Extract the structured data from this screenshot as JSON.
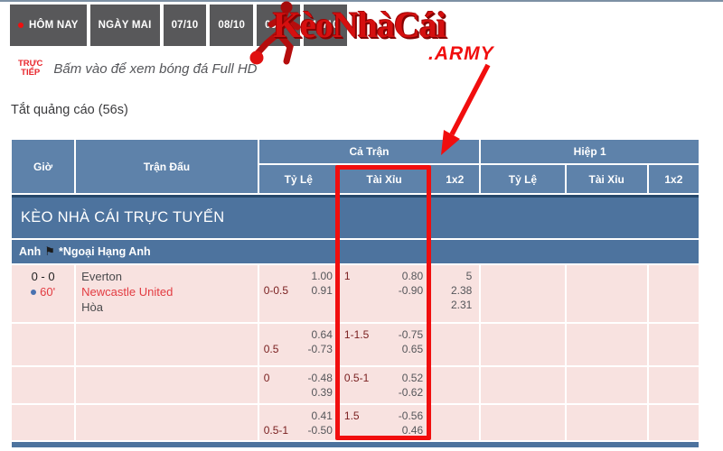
{
  "colors": {
    "accent_red": "#f10e0e",
    "logo_red": "#d50f0f",
    "live_red": "#e8262c",
    "header_blue": "#5e82aa",
    "band_blue": "#4d739e",
    "row_pink": "#f8e2e0",
    "tab_gray": "#58585a",
    "maroon": "#7a2020",
    "odds_gray": "#55565a",
    "team_red": "#e23b41",
    "dot_blue": "#4a72b0",
    "topline": "#7d90a4"
  },
  "topbar": {
    "tabs": [
      {
        "label": "HÔM NAY",
        "live_dot": true
      },
      {
        "label": "NGÀY MAI",
        "live_dot": false
      },
      {
        "label": "07/10",
        "live_dot": false
      },
      {
        "label": "08/10",
        "live_dot": false
      },
      {
        "label": "09/10",
        "live_dot": false
      },
      {
        "label": "10/10",
        "live_dot": false
      }
    ]
  },
  "logo": {
    "text": "KèoNhàCái",
    "suffix": ".ARMY"
  },
  "live_banner": {
    "badge_line1": "TRỰC",
    "badge_line2": "TIẾP",
    "text": "Bấm vào để xem bóng đá Full HD"
  },
  "ad_close": {
    "label": "Tắt quảng cáo (56s)"
  },
  "odds_table": {
    "headers": {
      "time": "Giờ",
      "match": "Trận Đấu",
      "full_match": "Cả Trận",
      "half1": "Hiệp 1",
      "ratio": "Tỷ Lệ",
      "over_under": "Tài Xỉu",
      "one_x_two": "1x2"
    },
    "section_title": "KÈO NHÀ CÁI TRỰC TUYẾN",
    "league": {
      "country": "Anh",
      "flag_icon": "black-flag",
      "name": "*Ngoại Hạng Anh"
    },
    "rows": [
      {
        "time": {
          "score": "0 - 0",
          "minute": "60'",
          "live": true
        },
        "teams": [
          "Everton",
          "Newcastle United",
          "Hòa"
        ],
        "highlight_team_index": 1,
        "cells": {
          "ft_ratio": [
            [
              "",
              "1.00"
            ],
            [
              "0-0.5",
              "0.91"
            ]
          ],
          "ft_ou": [
            [
              "1",
              "0.80"
            ],
            [
              "",
              "-0.90"
            ]
          ],
          "ft_1x2": [
            "5",
            "2.38",
            "2.31"
          ],
          "h1_ratio": [],
          "h1_ou": [],
          "h1_1x2": []
        }
      },
      {
        "time": null,
        "teams": [],
        "highlight_team_index": -1,
        "cells": {
          "ft_ratio": [
            [
              "",
              "0.64"
            ],
            [
              "0.5",
              "-0.73"
            ]
          ],
          "ft_ou": [
            [
              "1-1.5",
              "-0.75"
            ],
            [
              "",
              "0.65"
            ]
          ],
          "ft_1x2": [],
          "h1_ratio": [],
          "h1_ou": [],
          "h1_1x2": []
        }
      },
      {
        "time": null,
        "teams": [],
        "highlight_team_index": -1,
        "cells": {
          "ft_ratio": [
            [
              "0",
              "-0.48"
            ],
            [
              "",
              "0.39"
            ]
          ],
          "ft_ou": [
            [
              "0.5-1",
              "0.52"
            ],
            [
              "",
              "-0.62"
            ]
          ],
          "ft_1x2": [],
          "h1_ratio": [],
          "h1_ou": [],
          "h1_1x2": []
        }
      },
      {
        "time": null,
        "teams": [],
        "highlight_team_index": -1,
        "cells": {
          "ft_ratio": [
            [
              "",
              "0.41"
            ],
            [
              "0.5-1",
              "-0.50"
            ]
          ],
          "ft_ou": [
            [
              "1.5",
              "-0.56"
            ],
            [
              "",
              "0.46"
            ]
          ],
          "ft_1x2": [],
          "h1_ratio": [],
          "h1_ou": [],
          "h1_1x2": []
        }
      }
    ]
  },
  "annotation": {
    "shape": "red-box-and-arrow",
    "color": "#f10e0e"
  }
}
